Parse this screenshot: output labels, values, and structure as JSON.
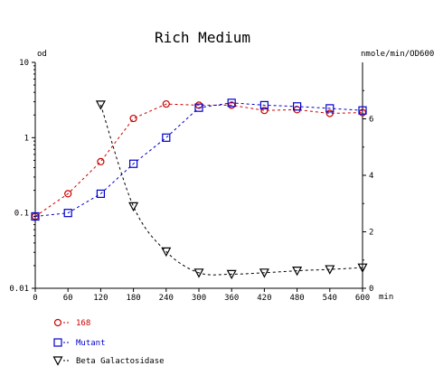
{
  "chart_data": {
    "type": "line",
    "title": "Rich Medium",
    "x": [
      0,
      60,
      120,
      180,
      240,
      300,
      360,
      420,
      480,
      540,
      600
    ],
    "x_unit": "min",
    "xlim": [
      0,
      600
    ],
    "x_ticks": [
      "0",
      "60",
      "120",
      "180",
      "240",
      "300",
      "360",
      "420",
      "480",
      "540",
      "600"
    ],
    "y_left_unit": "od",
    "y_left_scale": "log",
    "y_left_lim": [
      0.01,
      10
    ],
    "y_left_ticks": [
      "10",
      "1",
      "0.1",
      "0.01"
    ],
    "y_right_unit": "nmole/min/OD600",
    "y_right_scale": "linear",
    "y_right_lim": [
      0,
      8
    ],
    "y_right_ticks": [
      "0",
      "2",
      "4",
      "6"
    ],
    "grid": false,
    "legend_position": "bottom-left",
    "series": [
      {
        "name": "168",
        "axis": "left",
        "color": "#cc0000",
        "marker": "circle",
        "x": [
          0,
          60,
          120,
          180,
          240,
          300,
          360,
          420,
          480,
          540,
          600
        ],
        "values": [
          0.09,
          0.18,
          0.48,
          1.8,
          2.8,
          2.7,
          2.7,
          2.3,
          2.35,
          2.1,
          2.15
        ]
      },
      {
        "name": "Mutant",
        "axis": "left",
        "color": "#0000cc",
        "marker": "square",
        "x": [
          0,
          60,
          120,
          180,
          240,
          300,
          360,
          420,
          480,
          540,
          600
        ],
        "values": [
          0.09,
          0.1,
          0.18,
          0.45,
          1.0,
          2.5,
          2.9,
          2.7,
          2.6,
          2.45,
          2.3
        ]
      },
      {
        "name": "Beta Galactosidase",
        "axis": "right",
        "color": "#000000",
        "marker": "triangle-down",
        "x": [
          120,
          180,
          240,
          300,
          360,
          420,
          480,
          540,
          600
        ],
        "values": [
          6.5,
          2.9,
          1.3,
          0.55,
          0.5,
          0.55,
          0.62,
          0.67,
          0.73
        ]
      }
    ]
  }
}
